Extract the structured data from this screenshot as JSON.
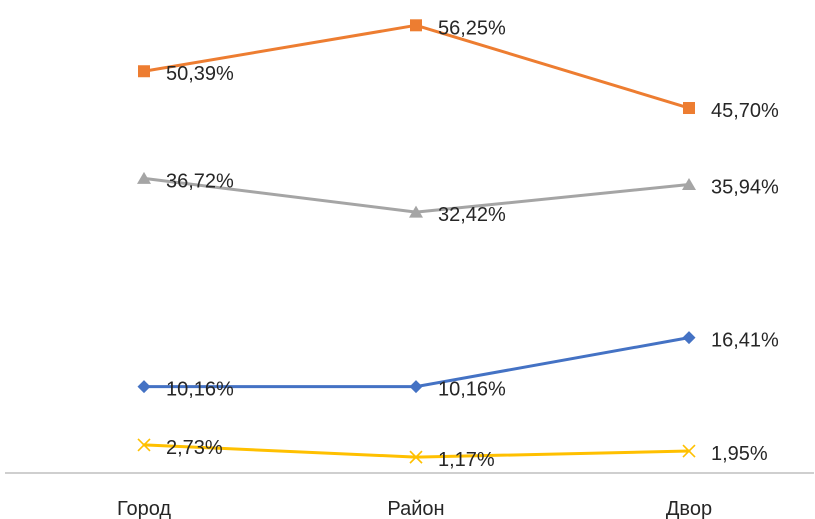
{
  "chart_data": {
    "type": "line",
    "title": "",
    "xlabel": "",
    "ylabel": "",
    "categories": [
      "Город",
      "Район",
      "Двор"
    ],
    "ylim": [
      0,
      60
    ],
    "grid": false,
    "legend": "none",
    "series": [
      {
        "values": [
          50.39,
          56.25,
          45.7
        ],
        "labels": [
          "50,39%",
          "56,25%",
          "45,70%"
        ],
        "color": "#ED7D31",
        "marker": "square"
      },
      {
        "values": [
          36.72,
          32.42,
          35.94
        ],
        "labels": [
          "36,72%",
          "32,42%",
          "35,94%"
        ],
        "color": "#A5A5A5",
        "marker": "triangle"
      },
      {
        "values": [
          10.16,
          10.16,
          16.41
        ],
        "labels": [
          "10,16%",
          "10,16%",
          "16,41%"
        ],
        "color": "#4472C4",
        "marker": "diamond"
      },
      {
        "values": [
          2.73,
          1.17,
          1.95
        ],
        "labels": [
          "2,73%",
          "1,17%",
          "1,95%"
        ],
        "color": "#FFC000",
        "marker": "x"
      }
    ]
  }
}
